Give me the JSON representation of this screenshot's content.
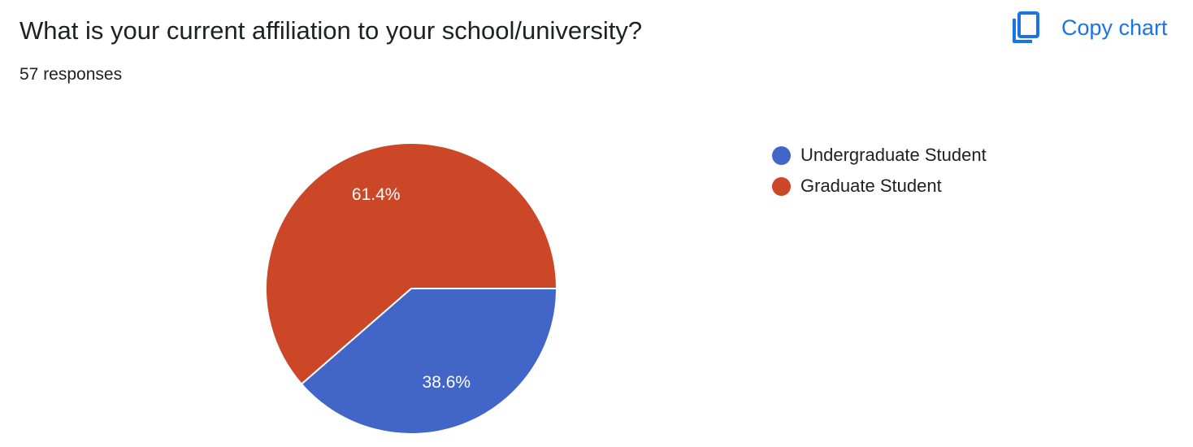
{
  "header": {
    "question": "What is your current affiliation to your school/university?",
    "responses": "57 responses",
    "copy_label": "Copy chart",
    "copy_icon": "copy-icon",
    "accent_color": "#1a73e8"
  },
  "chart_data": {
    "type": "pie",
    "title": "What is your current affiliation to your school/university?",
    "total_responses": 57,
    "legend_position": "right",
    "slices": [
      {
        "label": "Undergraduate Student",
        "value": 38.6,
        "display": "38.6%",
        "color": "#4166c8"
      },
      {
        "label": "Graduate Student",
        "value": 61.4,
        "display": "61.4%",
        "color": "#cc4628"
      }
    ]
  }
}
